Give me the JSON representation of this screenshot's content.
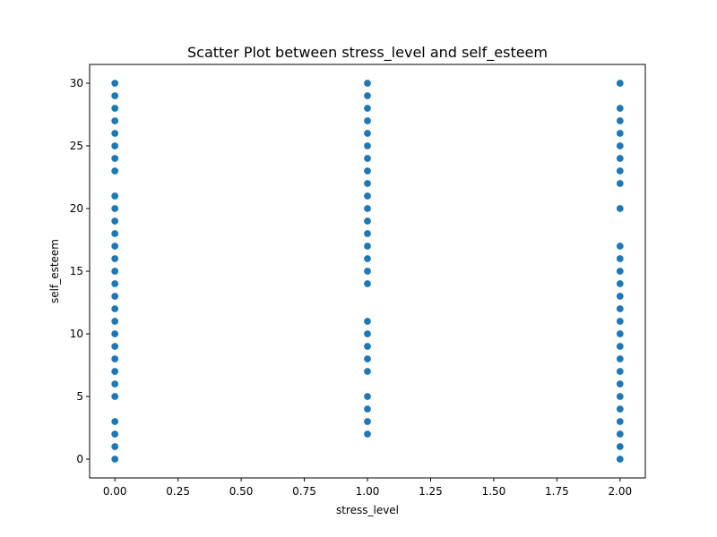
{
  "chart_data": {
    "type": "scatter",
    "title": "Scatter Plot between stress_level and self_esteem",
    "xlabel": "stress_level",
    "ylabel": "self_esteem",
    "xlim": [
      -0.1,
      2.1
    ],
    "ylim": [
      -1.5,
      31.5
    ],
    "x_ticks": [
      0.0,
      0.25,
      0.5,
      0.75,
      1.0,
      1.25,
      1.5,
      1.75,
      2.0
    ],
    "x_tick_labels": [
      "0.00",
      "0.25",
      "0.50",
      "0.75",
      "1.00",
      "1.25",
      "1.50",
      "1.75",
      "2.00"
    ],
    "y_ticks": [
      0,
      5,
      10,
      15,
      20,
      25,
      30
    ],
    "y_tick_labels": [
      "0",
      "5",
      "10",
      "15",
      "20",
      "25",
      "30"
    ],
    "grid": false,
    "marker_color": "#1f77b4",
    "points": [
      {
        "x": 0,
        "y": 0
      },
      {
        "x": 0,
        "y": 1
      },
      {
        "x": 0,
        "y": 2
      },
      {
        "x": 0,
        "y": 3
      },
      {
        "x": 0,
        "y": 5
      },
      {
        "x": 0,
        "y": 6
      },
      {
        "x": 0,
        "y": 7
      },
      {
        "x": 0,
        "y": 8
      },
      {
        "x": 0,
        "y": 9
      },
      {
        "x": 0,
        "y": 10
      },
      {
        "x": 0,
        "y": 11
      },
      {
        "x": 0,
        "y": 12
      },
      {
        "x": 0,
        "y": 13
      },
      {
        "x": 0,
        "y": 14
      },
      {
        "x": 0,
        "y": 15
      },
      {
        "x": 0,
        "y": 16
      },
      {
        "x": 0,
        "y": 17
      },
      {
        "x": 0,
        "y": 18
      },
      {
        "x": 0,
        "y": 19
      },
      {
        "x": 0,
        "y": 20
      },
      {
        "x": 0,
        "y": 21
      },
      {
        "x": 0,
        "y": 23
      },
      {
        "x": 0,
        "y": 24
      },
      {
        "x": 0,
        "y": 25
      },
      {
        "x": 0,
        "y": 26
      },
      {
        "x": 0,
        "y": 27
      },
      {
        "x": 0,
        "y": 28
      },
      {
        "x": 0,
        "y": 29
      },
      {
        "x": 0,
        "y": 30
      },
      {
        "x": 1,
        "y": 2
      },
      {
        "x": 1,
        "y": 3
      },
      {
        "x": 1,
        "y": 4
      },
      {
        "x": 1,
        "y": 5
      },
      {
        "x": 1,
        "y": 7
      },
      {
        "x": 1,
        "y": 8
      },
      {
        "x": 1,
        "y": 9
      },
      {
        "x": 1,
        "y": 10
      },
      {
        "x": 1,
        "y": 11
      },
      {
        "x": 1,
        "y": 14
      },
      {
        "x": 1,
        "y": 15
      },
      {
        "x": 1,
        "y": 16
      },
      {
        "x": 1,
        "y": 17
      },
      {
        "x": 1,
        "y": 18
      },
      {
        "x": 1,
        "y": 19
      },
      {
        "x": 1,
        "y": 20
      },
      {
        "x": 1,
        "y": 21
      },
      {
        "x": 1,
        "y": 22
      },
      {
        "x": 1,
        "y": 23
      },
      {
        "x": 1,
        "y": 24
      },
      {
        "x": 1,
        "y": 25
      },
      {
        "x": 1,
        "y": 26
      },
      {
        "x": 1,
        "y": 27
      },
      {
        "x": 1,
        "y": 28
      },
      {
        "x": 1,
        "y": 29
      },
      {
        "x": 1,
        "y": 30
      },
      {
        "x": 2,
        "y": 0
      },
      {
        "x": 2,
        "y": 1
      },
      {
        "x": 2,
        "y": 2
      },
      {
        "x": 2,
        "y": 3
      },
      {
        "x": 2,
        "y": 4
      },
      {
        "x": 2,
        "y": 5
      },
      {
        "x": 2,
        "y": 6
      },
      {
        "x": 2,
        "y": 7
      },
      {
        "x": 2,
        "y": 8
      },
      {
        "x": 2,
        "y": 9
      },
      {
        "x": 2,
        "y": 10
      },
      {
        "x": 2,
        "y": 11
      },
      {
        "x": 2,
        "y": 12
      },
      {
        "x": 2,
        "y": 13
      },
      {
        "x": 2,
        "y": 14
      },
      {
        "x": 2,
        "y": 15
      },
      {
        "x": 2,
        "y": 16
      },
      {
        "x": 2,
        "y": 17
      },
      {
        "x": 2,
        "y": 20
      },
      {
        "x": 2,
        "y": 22
      },
      {
        "x": 2,
        "y": 23
      },
      {
        "x": 2,
        "y": 24
      },
      {
        "x": 2,
        "y": 25
      },
      {
        "x": 2,
        "y": 26
      },
      {
        "x": 2,
        "y": 27
      },
      {
        "x": 2,
        "y": 28
      },
      {
        "x": 2,
        "y": 30
      }
    ]
  }
}
